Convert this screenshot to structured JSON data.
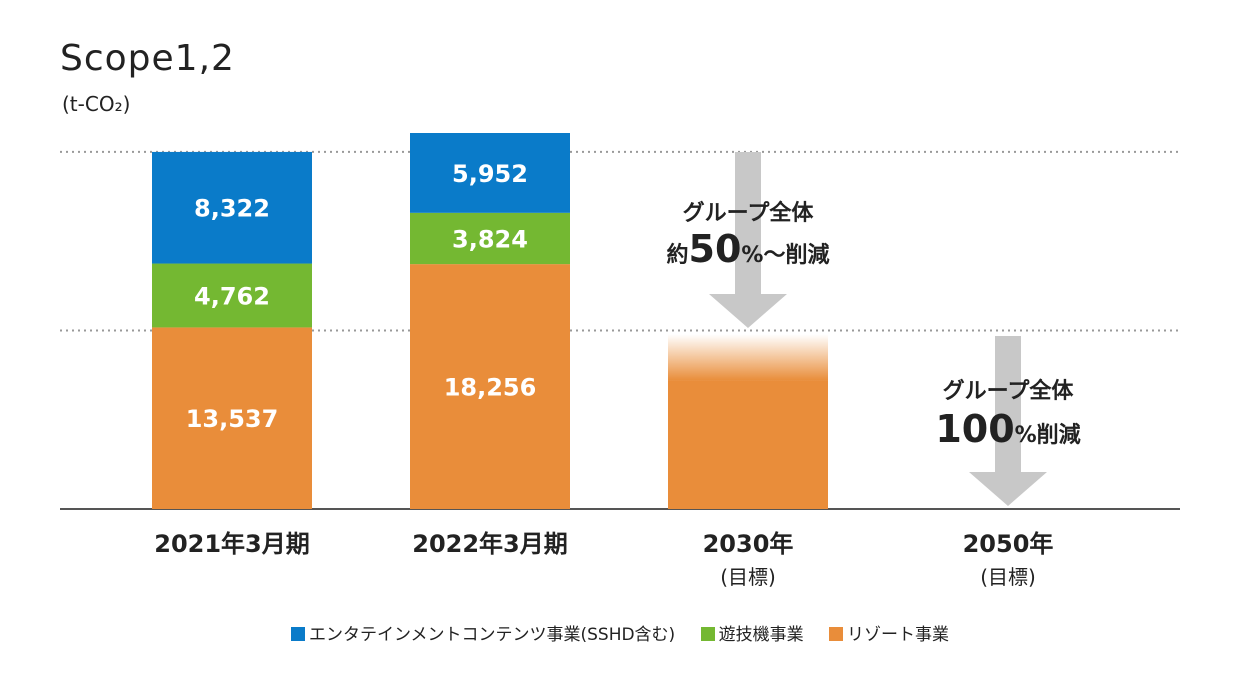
{
  "chart_data": {
    "type": "bar",
    "title": "Scope1,2",
    "unit": "(t-CO₂)",
    "categories": [
      {
        "label": "2021年3月期",
        "sublabel": ""
      },
      {
        "label": "2022年3月期",
        "sublabel": ""
      },
      {
        "label": "2030年",
        "sublabel": "(目標)"
      },
      {
        "label": "2050年",
        "sublabel": "(目標)"
      }
    ],
    "series": [
      {
        "name": "リゾート事業",
        "color": "#E98D3A",
        "values": [
          13537,
          18256,
          null,
          null
        ],
        "labels": [
          "13,537",
          "18,256",
          "",
          ""
        ]
      },
      {
        "name": "遊技機事業",
        "color": "#74B832",
        "values": [
          4762,
          3824,
          null,
          null
        ],
        "labels": [
          "4,762",
          "3,824",
          "",
          ""
        ]
      },
      {
        "name": "エンタテインメントコンテンツ事業(SSHD含む)",
        "color": "#0A7BC9",
        "values": [
          8322,
          5952,
          null,
          null
        ],
        "labels": [
          "8,322",
          "5,952",
          "",
          ""
        ]
      }
    ],
    "target_2030": {
      "value": 13311,
      "color": "#E98D3A"
    },
    "annotations": [
      {
        "line1": "グループ全体",
        "line2_prefix": "約",
        "line2_big": "50",
        "line2_suffix": "%〜削減"
      },
      {
        "line1": "グループ全体",
        "line2_prefix": "",
        "line2_big": "100",
        "line2_suffix": "%削減"
      }
    ],
    "reference_lines": [
      26621,
      13311
    ],
    "ylim": [
      0,
      28000
    ],
    "grid": false,
    "legend_position": "bottom-center"
  }
}
